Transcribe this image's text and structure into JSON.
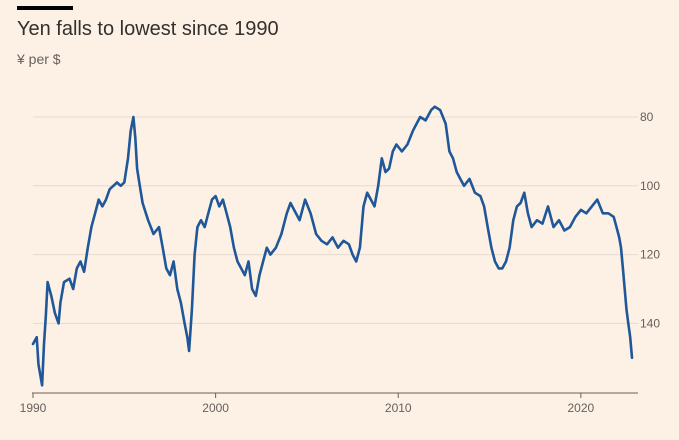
{
  "chart_data": {
    "type": "line",
    "title": "Yen falls to lowest since 1990",
    "subtitle": "¥ per $",
    "xlabel": "",
    "ylabel": "",
    "xlim": [
      1990,
      2022.8
    ],
    "ylim": [
      160,
      72
    ],
    "y_axis_inverted": true,
    "y_axis_position": "right",
    "x_ticks": [
      1990,
      2000,
      2010,
      2020
    ],
    "y_ticks": [
      80,
      100,
      120,
      140
    ],
    "grid": "horizontal",
    "line_color": "#1f5799",
    "series": [
      {
        "x": [
          1990.0,
          1990.2,
          1990.3,
          1990.5,
          1990.6,
          1990.7,
          1990.8,
          1991.0,
          1991.2,
          1991.4,
          1991.5,
          1991.7,
          1992.0,
          1992.2,
          1992.4,
          1992.6,
          1992.8,
          1993.0,
          1993.2,
          1993.4,
          1993.6,
          1993.8,
          1994.0,
          1994.2,
          1994.4,
          1994.6,
          1994.8,
          1995.0,
          1995.2,
          1995.35,
          1995.5,
          1995.6,
          1995.7,
          1995.85,
          1996.0,
          1996.3,
          1996.6,
          1996.9,
          1997.1,
          1997.3,
          1997.5,
          1997.7,
          1997.9,
          1998.1,
          1998.3,
          1998.45,
          1998.55,
          1998.7,
          1998.85,
          1999.0,
          1999.2,
          1999.4,
          1999.6,
          1999.8,
          2000.0,
          2000.2,
          2000.4,
          2000.6,
          2000.8,
          2001.0,
          2001.2,
          2001.4,
          2001.6,
          2001.8,
          2002.0,
          2002.2,
          2002.4,
          2002.6,
          2002.8,
          2003.0,
          2003.3,
          2003.6,
          2003.9,
          2004.1,
          2004.3,
          2004.6,
          2004.9,
          2005.2,
          2005.5,
          2005.8,
          2006.1,
          2006.4,
          2006.7,
          2007.0,
          2007.3,
          2007.5,
          2007.7,
          2007.9,
          2008.1,
          2008.3,
          2008.5,
          2008.7,
          2008.9,
          2009.1,
          2009.3,
          2009.5,
          2009.7,
          2009.9,
          2010.2,
          2010.5,
          2010.8,
          2011.0,
          2011.2,
          2011.5,
          2011.8,
          2012.0,
          2012.3,
          2012.6,
          2012.8,
          2013.0,
          2013.2,
          2013.4,
          2013.6,
          2013.9,
          2014.2,
          2014.5,
          2014.7,
          2014.9,
          2015.1,
          2015.3,
          2015.5,
          2015.7,
          2015.9,
          2016.1,
          2016.3,
          2016.5,
          2016.7,
          2016.9,
          2017.1,
          2017.3,
          2017.6,
          2017.9,
          2018.2,
          2018.5,
          2018.8,
          2019.1,
          2019.4,
          2019.7,
          2020.0,
          2020.3,
          2020.6,
          2020.9,
          2021.2,
          2021.5,
          2021.8,
          2022.0,
          2022.1,
          2022.2,
          2022.3,
          2022.4,
          2022.5,
          2022.6,
          2022.7,
          2022.8
        ],
        "y": [
          146,
          144,
          152,
          158,
          146,
          138,
          128,
          132,
          137,
          140,
          134,
          128,
          127,
          130,
          124,
          122,
          125,
          118,
          112,
          108,
          104,
          106,
          104,
          101,
          100,
          99,
          100,
          99,
          92,
          84,
          80,
          86,
          95,
          100,
          105,
          110,
          114,
          112,
          118,
          124,
          126,
          122,
          130,
          134,
          140,
          144,
          148,
          136,
          120,
          112,
          110,
          112,
          108,
          104,
          103,
          106,
          104,
          108,
          112,
          118,
          122,
          124,
          126,
          122,
          130,
          132,
          126,
          122,
          118,
          120,
          118,
          114,
          108,
          105,
          107,
          110,
          104,
          108,
          114,
          116,
          117,
          115,
          118,
          116,
          117,
          120,
          122,
          118,
          106,
          102,
          104,
          106,
          100,
          92,
          96,
          95,
          90,
          88,
          90,
          88,
          84,
          82,
          80,
          81,
          78,
          77,
          78,
          82,
          90,
          92,
          96,
          98,
          100,
          98,
          102,
          103,
          106,
          112,
          118,
          122,
          124,
          124,
          122,
          118,
          110,
          106,
          105,
          102,
          108,
          112,
          110,
          111,
          106,
          112,
          110,
          113,
          112,
          109,
          107,
          108,
          106,
          104,
          108,
          108,
          109,
          113,
          115,
          118,
          124,
          130,
          136,
          140,
          144,
          150
        ]
      }
    ]
  }
}
